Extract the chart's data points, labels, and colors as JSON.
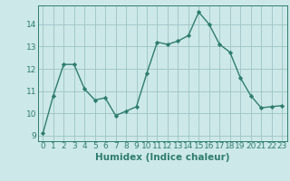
{
  "x": [
    0,
    1,
    2,
    3,
    4,
    5,
    6,
    7,
    8,
    9,
    10,
    11,
    12,
    13,
    14,
    15,
    16,
    17,
    18,
    19,
    20,
    21,
    22,
    23
  ],
  "y": [
    9.1,
    10.8,
    12.2,
    12.2,
    11.1,
    10.6,
    10.7,
    9.9,
    10.1,
    10.3,
    11.8,
    13.2,
    13.1,
    13.25,
    13.5,
    14.55,
    14.0,
    13.1,
    12.75,
    11.6,
    10.8,
    10.25,
    10.3,
    10.35
  ],
  "line_color": "#2e7d6e",
  "marker": "D",
  "marker_size": 2.2,
  "line_width": 1.0,
  "xlabel": "Humidex (Indice chaleur)",
  "xlabel_fontsize": 7.5,
  "bg_color": "#cde8e8",
  "grid_color": "#9dc4c4",
  "axis_color": "#2e7d6e",
  "tick_color": "#2e7d6e",
  "xlim": [
    -0.5,
    23.5
  ],
  "ylim": [
    8.75,
    14.85
  ],
  "yticks": [
    9,
    10,
    11,
    12,
    13,
    14
  ],
  "xticks": [
    0,
    1,
    2,
    3,
    4,
    5,
    6,
    7,
    8,
    9,
    10,
    11,
    12,
    13,
    14,
    15,
    16,
    17,
    18,
    19,
    20,
    21,
    22,
    23
  ],
  "tick_fontsize": 6.5
}
